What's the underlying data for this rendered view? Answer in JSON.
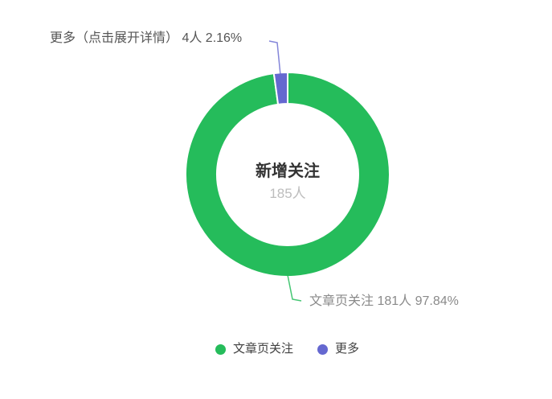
{
  "accent_colors": {
    "green": "#25BC5B",
    "purple": "#6568D0",
    "slice_border": "#ffffff"
  },
  "chart_data": {
    "type": "pie",
    "subtype": "donut",
    "total_value": 185,
    "unit": "人",
    "center": {
      "title": "新增关注",
      "value": "185人"
    },
    "series": [
      {
        "key": "article",
        "name": "文章页关注",
        "value": 181,
        "percent": "97.84%",
        "color": "#25BC5B"
      },
      {
        "key": "more",
        "name": "更多",
        "value": 4,
        "percent": "2.16%",
        "color": "#6568D0"
      }
    ],
    "callout_labels": {
      "more": "更多（点击展开详情） 4人 2.16%",
      "article": "文章页关注 181人 97.84%"
    },
    "legend": {
      "position": "bottom",
      "items": [
        {
          "label": "文章页关注",
          "color": "#25BC5B"
        },
        {
          "label": "更多",
          "color": "#6568D0"
        }
      ]
    },
    "layout": {
      "start_angle_deg": 0,
      "clockwise": true,
      "grid": false
    }
  }
}
